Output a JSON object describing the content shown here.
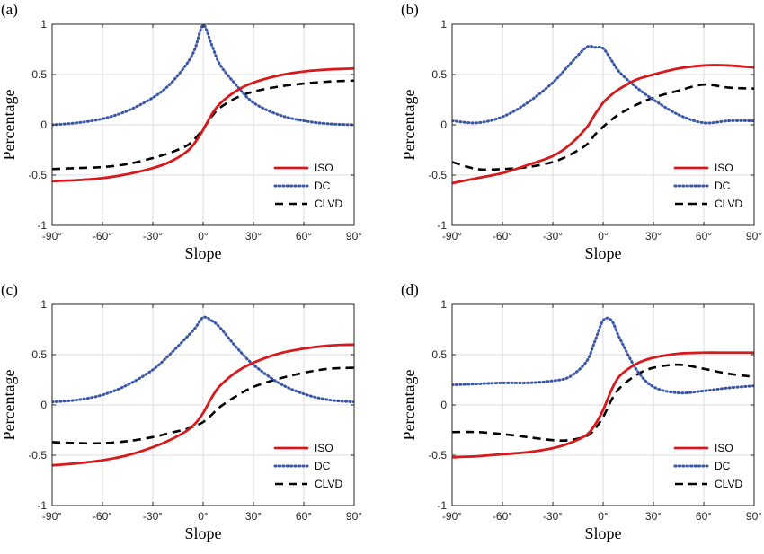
{
  "colors": {
    "ISO": "#d7191c",
    "DC": "#3a57a7",
    "CLVD": "#000000",
    "grid": "#dcdcdc",
    "axis": "#262626"
  },
  "chart_data": [
    {
      "panel": "(a)",
      "type": "line",
      "xlabel": "Slope",
      "ylabel": "Percentage",
      "xlim": [
        -90,
        90
      ],
      "ylim": [
        -1,
        1
      ],
      "xticks": [
        "-90°",
        "-60°",
        "-30°",
        "0°",
        "30°",
        "60°",
        "90°"
      ],
      "yticks": [
        "1",
        "0.5",
        "0",
        "-0.5",
        "-1"
      ],
      "grid": true,
      "legend": "bottom-right",
      "x": [
        -90,
        -75,
        -60,
        -45,
        -30,
        -20,
        -10,
        -5,
        0,
        5,
        10,
        20,
        30,
        45,
        60,
        75,
        90
      ],
      "series": [
        {
          "name": "ISO",
          "style": "solid",
          "values": [
            -0.56,
            -0.55,
            -0.53,
            -0.49,
            -0.43,
            -0.37,
            -0.27,
            -0.18,
            -0.05,
            0.1,
            0.21,
            0.34,
            0.42,
            0.49,
            0.53,
            0.55,
            0.56
          ]
        },
        {
          "name": "DC",
          "style": "dotted",
          "values": [
            0.0,
            0.02,
            0.06,
            0.14,
            0.27,
            0.4,
            0.6,
            0.75,
            0.99,
            0.8,
            0.6,
            0.39,
            0.22,
            0.1,
            0.04,
            0.01,
            0.0
          ]
        },
        {
          "name": "CLVD",
          "style": "dashed",
          "values": [
            -0.44,
            -0.43,
            -0.42,
            -0.39,
            -0.33,
            -0.28,
            -0.21,
            -0.14,
            -0.04,
            0.08,
            0.17,
            0.27,
            0.33,
            0.38,
            0.41,
            0.43,
            0.44
          ]
        }
      ]
    },
    {
      "panel": "(b)",
      "type": "line",
      "xlabel": "Slope",
      "ylabel": "Percentage",
      "xlim": [
        -90,
        90
      ],
      "ylim": [
        -1,
        1
      ],
      "xticks": [
        "-90°",
        "-60°",
        "-30°",
        "0°",
        "30°",
        "60°",
        "90°"
      ],
      "yticks": [
        "1",
        "0.5",
        "0",
        "-0.5",
        "-1"
      ],
      "grid": true,
      "legend": "bottom-right",
      "x": [
        -90,
        -75,
        -60,
        -45,
        -30,
        -20,
        -10,
        -5,
        0,
        5,
        10,
        20,
        30,
        45,
        60,
        75,
        90
      ],
      "series": [
        {
          "name": "ISO",
          "style": "solid",
          "values": [
            -0.58,
            -0.53,
            -0.48,
            -0.4,
            -0.31,
            -0.2,
            -0.03,
            0.1,
            0.22,
            0.3,
            0.36,
            0.45,
            0.5,
            0.56,
            0.59,
            0.59,
            0.57
          ]
        },
        {
          "name": "DC",
          "style": "dotted",
          "values": [
            0.04,
            0.02,
            0.08,
            0.22,
            0.42,
            0.6,
            0.77,
            0.77,
            0.76,
            0.64,
            0.52,
            0.37,
            0.25,
            0.1,
            0.02,
            0.04,
            0.04
          ]
        },
        {
          "name": "CLVD",
          "style": "dashed",
          "values": [
            -0.37,
            -0.44,
            -0.44,
            -0.42,
            -0.37,
            -0.3,
            -0.2,
            -0.1,
            -0.02,
            0.05,
            0.11,
            0.2,
            0.27,
            0.34,
            0.4,
            0.37,
            0.36
          ]
        }
      ]
    },
    {
      "panel": "(c)",
      "type": "line",
      "xlabel": "Slope",
      "ylabel": "Percentage",
      "xlim": [
        -90,
        90
      ],
      "ylim": [
        -1,
        1
      ],
      "xticks": [
        "-90°",
        "-60°",
        "-30°",
        "0°",
        "30°",
        "60°",
        "90°"
      ],
      "yticks": [
        "1",
        "0.5",
        "0",
        "-0.5",
        "-1"
      ],
      "grid": true,
      "legend": "bottom-right",
      "x": [
        -90,
        -75,
        -60,
        -45,
        -30,
        -20,
        -10,
        -5,
        0,
        5,
        10,
        20,
        30,
        45,
        60,
        75,
        90
      ],
      "series": [
        {
          "name": "ISO",
          "style": "solid",
          "values": [
            -0.6,
            -0.58,
            -0.55,
            -0.5,
            -0.42,
            -0.35,
            -0.26,
            -0.19,
            -0.08,
            0.07,
            0.19,
            0.33,
            0.42,
            0.51,
            0.56,
            0.59,
            0.6
          ]
        },
        {
          "name": "DC",
          "style": "dotted",
          "values": [
            0.03,
            0.05,
            0.1,
            0.2,
            0.35,
            0.5,
            0.67,
            0.76,
            0.87,
            0.84,
            0.77,
            0.57,
            0.4,
            0.22,
            0.11,
            0.05,
            0.03
          ]
        },
        {
          "name": "CLVD",
          "style": "dashed",
          "values": [
            -0.37,
            -0.38,
            -0.38,
            -0.36,
            -0.32,
            -0.28,
            -0.24,
            -0.21,
            -0.17,
            -0.1,
            -0.02,
            0.09,
            0.18,
            0.26,
            0.32,
            0.36,
            0.37
          ]
        }
      ]
    },
    {
      "panel": "(d)",
      "type": "line",
      "xlabel": "Slope",
      "ylabel": "Percentage",
      "xlim": [
        -90,
        90
      ],
      "ylim": [
        -1,
        1
      ],
      "xticks": [
        "-90°",
        "-60°",
        "-30°",
        "0°",
        "30°",
        "60°",
        "90°"
      ],
      "yticks": [
        "1",
        "0.5",
        "0",
        "-0.5",
        "-1"
      ],
      "grid": true,
      "legend": "bottom-right",
      "x": [
        -90,
        -75,
        -60,
        -45,
        -30,
        -20,
        -10,
        -5,
        0,
        5,
        10,
        20,
        30,
        45,
        60,
        75,
        90
      ],
      "series": [
        {
          "name": "ISO",
          "style": "solid",
          "values": [
            -0.52,
            -0.51,
            -0.49,
            -0.47,
            -0.43,
            -0.38,
            -0.3,
            -0.2,
            -0.05,
            0.15,
            0.29,
            0.41,
            0.47,
            0.51,
            0.52,
            0.52,
            0.52
          ]
        },
        {
          "name": "DC",
          "style": "dotted",
          "values": [
            0.2,
            0.21,
            0.22,
            0.22,
            0.24,
            0.28,
            0.43,
            0.63,
            0.84,
            0.84,
            0.66,
            0.35,
            0.18,
            0.12,
            0.14,
            0.17,
            0.19
          ]
        },
        {
          "name": "CLVD",
          "style": "dashed",
          "values": [
            -0.27,
            -0.27,
            -0.29,
            -0.32,
            -0.35,
            -0.35,
            -0.31,
            -0.24,
            -0.12,
            0.05,
            0.17,
            0.3,
            0.37,
            0.4,
            0.36,
            0.31,
            0.28
          ]
        }
      ]
    }
  ]
}
